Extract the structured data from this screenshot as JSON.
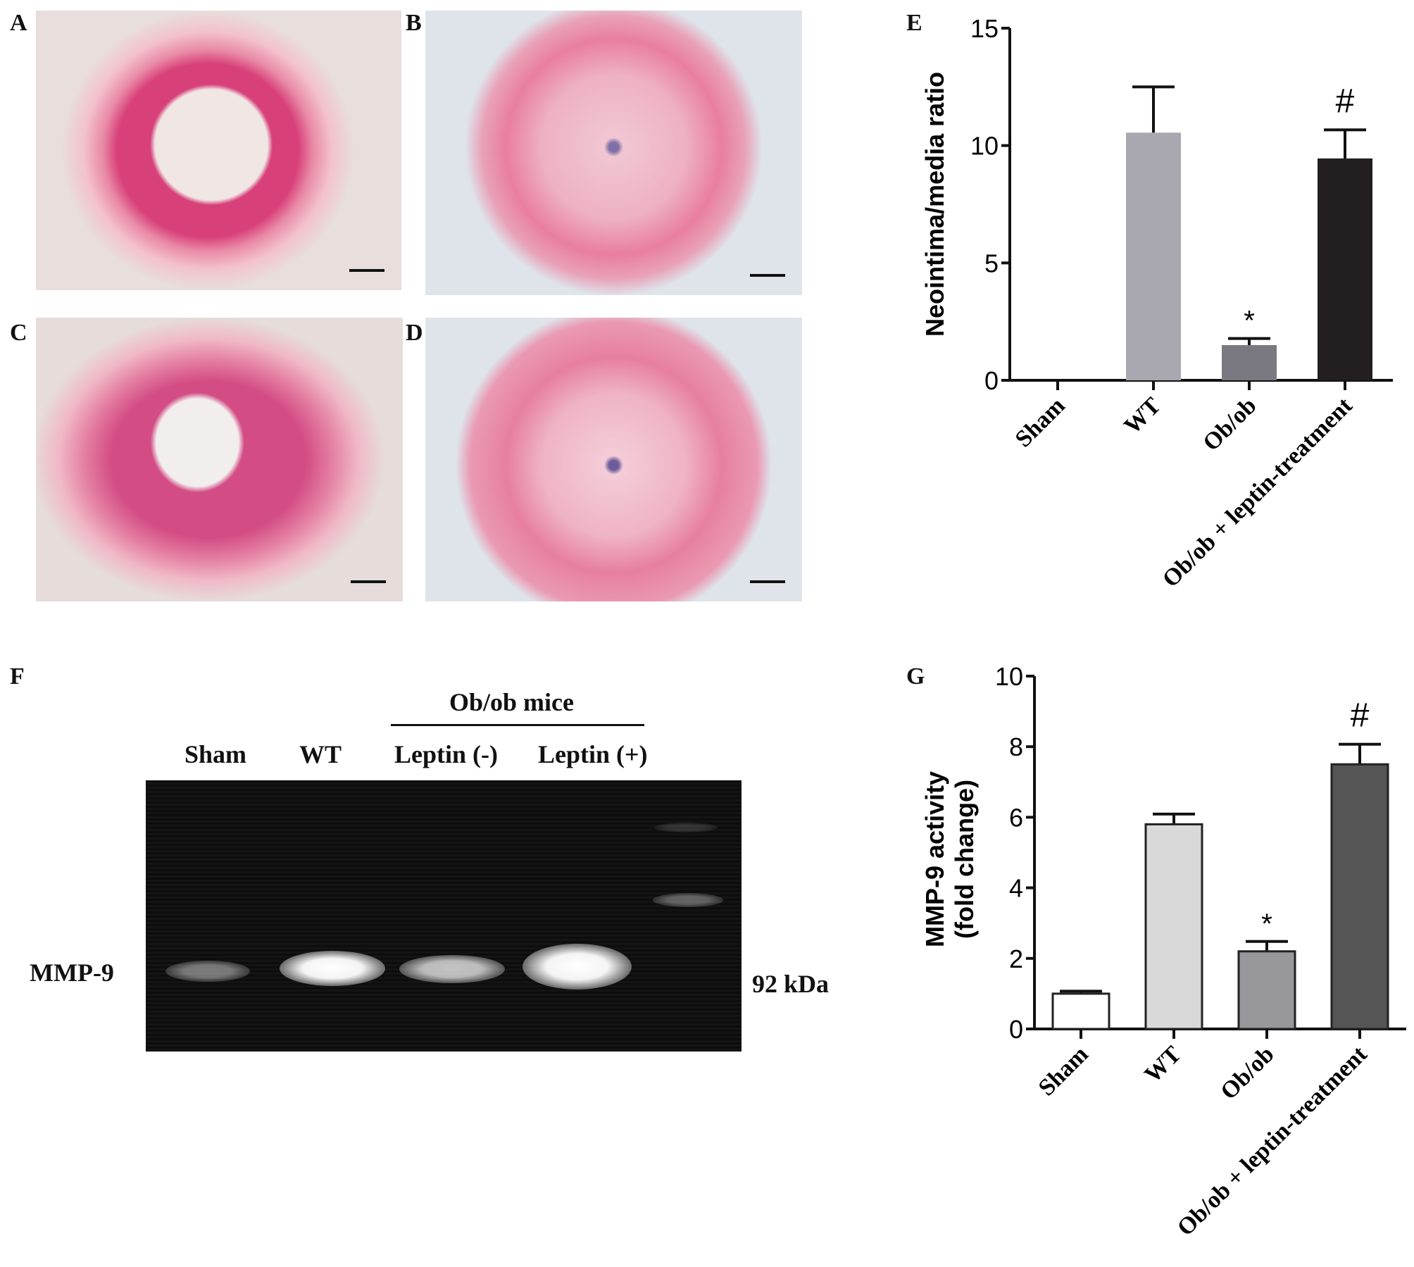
{
  "panels": {
    "A": "A",
    "B": "B",
    "C": "C",
    "D": "D",
    "E": "E",
    "F": "F",
    "G": "G"
  },
  "gel": {
    "group_label": "Ob/ob mice",
    "lanes": [
      "Sham",
      "WT",
      "Leptin (-)",
      "Leptin (+)"
    ],
    "band_label": "MMP-9",
    "size_label": "92 kDa",
    "band_intensity": [
      0.35,
      0.9,
      0.6,
      1.0
    ]
  },
  "colors": {
    "pink": "#e8708f",
    "nuclei": "#4b3f8f",
    "background": "#e6dcd8"
  },
  "chart_data": [
    {
      "type": "bar",
      "panel": "E",
      "categories": [
        "Sham",
        "WT",
        "Ob/ob",
        "Ob/ob + leptin-treatment"
      ],
      "values": [
        0,
        10.55,
        1.5,
        9.45
      ],
      "errors_upper": [
        0,
        12.5,
        1.78,
        10.67
      ],
      "annotations": [
        "",
        "",
        "*",
        "#"
      ],
      "colors": [
        "#ffffff",
        "#a9a8b0",
        "#7a7880",
        "#231f20"
      ],
      "ylabel": "Neointima/media ratio",
      "ylim": [
        0,
        15
      ],
      "yticks": [
        0,
        5,
        10,
        15
      ],
      "grid": false
    },
    {
      "type": "bar",
      "panel": "G",
      "categories": [
        "Sham",
        "WT",
        "Ob/ob",
        "Ob/ob + leptin-treatment"
      ],
      "values": [
        1.0,
        5.8,
        2.2,
        7.5
      ],
      "errors_upper": [
        1.07,
        6.09,
        2.48,
        8.07
      ],
      "annotations": [
        "",
        "",
        "*",
        "#"
      ],
      "colors": [
        "#ffffff",
        "#d9d9d9",
        "#98979c",
        "#555555"
      ],
      "ylabel": "MMP-9 activity",
      "ylabel2": "(fold change)",
      "ylim": [
        0,
        10
      ],
      "yticks": [
        0,
        2,
        4,
        6,
        8,
        10
      ],
      "grid": false
    }
  ]
}
